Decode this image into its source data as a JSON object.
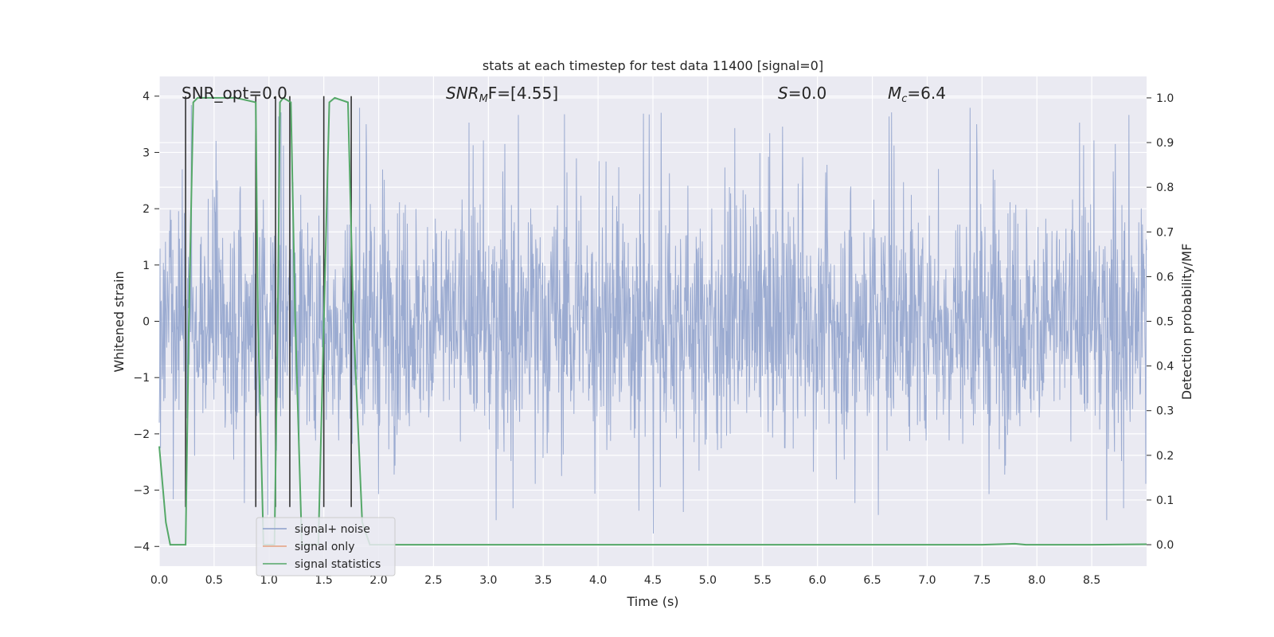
{
  "chart_data": {
    "type": "line",
    "title": "stats at each timestep for test data 11400 [signal=0]",
    "xlabel": "Time (s)",
    "ylabel": "Whitened strain",
    "y2label": "Detection probability/MF",
    "xlim": [
      0.0,
      9.0
    ],
    "ylim": [
      -4.35,
      4.35
    ],
    "y2lim": [
      -0.048,
      1.048
    ],
    "x_ticks": [
      "0.0",
      "0.5",
      "1.0",
      "1.5",
      "2.0",
      "2.5",
      "3.0",
      "3.5",
      "4.0",
      "4.5",
      "5.0",
      "5.5",
      "6.0",
      "6.5",
      "7.0",
      "7.5",
      "8.0",
      "8.5"
    ],
    "y_ticks": [
      "4",
      "3",
      "2",
      "1",
      "0",
      "−1",
      "−2",
      "−3",
      "−4"
    ],
    "y2_ticks": [
      "1.0",
      "0.9",
      "0.8",
      "0.7",
      "0.6",
      "0.5",
      "0.4",
      "0.3",
      "0.2",
      "0.1",
      "0.0"
    ],
    "grid": true,
    "legend_position": "lower-left",
    "annotations": {
      "snr_opt": "SNR_opt=0.0",
      "snr_mf_main": "SNR",
      "snr_mf_sub": "M",
      "snr_mf_rest": "F=[4.55]",
      "s_main": "S",
      "s_rest": "=0.0",
      "mc_main": "M",
      "mc_sub": "c",
      "mc_rest": "=6.4"
    },
    "series": [
      {
        "name": "signal+ noise",
        "color": "#8da0cb",
        "noise_envelope": [
          -2.3,
          2.6
        ],
        "noise_extremes": [
          -4.0,
          4.0
        ]
      },
      {
        "name": "signal only",
        "color": "#e5a07e",
        "values": []
      },
      {
        "name": "signal statistics",
        "color": "#55a868",
        "axis": "right",
        "x": [
          0.0,
          0.06,
          0.1,
          0.24,
          0.27,
          0.31,
          0.35,
          0.5,
          0.7,
          0.88,
          0.9,
          0.95,
          1.0,
          1.05,
          1.08,
          1.1,
          1.13,
          1.2,
          1.24,
          1.3,
          1.35,
          1.45,
          1.5,
          1.55,
          1.6,
          1.72,
          1.77,
          1.85,
          1.92,
          2.0,
          3.0,
          4.0,
          5.0,
          6.0,
          7.0,
          7.5,
          7.8,
          7.9,
          8.0,
          8.5,
          9.0
        ],
        "y": [
          0.22,
          0.05,
          0.0,
          0.0,
          0.5,
          0.99,
          1.0,
          1.0,
          1.0,
          0.99,
          0.5,
          0.0,
          0.0,
          0.0,
          0.5,
          0.99,
          1.0,
          0.99,
          0.5,
          0.0,
          0.0,
          0.0,
          0.5,
          0.99,
          1.0,
          0.99,
          0.5,
          0.05,
          0.0,
          0.0,
          0.0,
          0.0,
          0.0,
          0.0,
          0.0,
          0.0,
          0.002,
          0.0,
          0.0,
          0.0,
          0.001
        ]
      }
    ],
    "vertical_markers": [
      0.24,
      0.88,
      1.06,
      1.19,
      1.5,
      1.75
    ],
    "marker_color": "#333333"
  }
}
